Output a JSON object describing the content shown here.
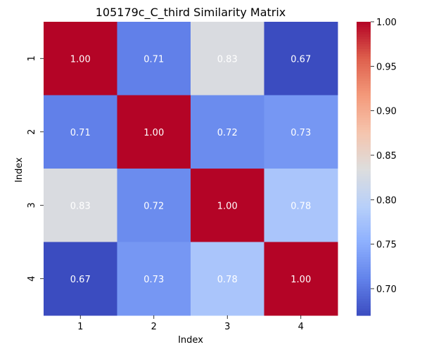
{
  "chart_data": {
    "type": "heatmap",
    "title": "105179c_C_third Similarity Matrix",
    "xlabel": "Index",
    "ylabel": "Index",
    "x_categories": [
      "1",
      "2",
      "3",
      "4"
    ],
    "y_categories": [
      "1",
      "2",
      "3",
      "4"
    ],
    "values": [
      [
        1.0,
        0.71,
        0.83,
        0.67
      ],
      [
        0.71,
        1.0,
        0.72,
        0.73
      ],
      [
        0.83,
        0.72,
        1.0,
        0.78
      ],
      [
        0.67,
        0.73,
        0.78,
        1.0
      ]
    ],
    "value_labels": [
      [
        "1.00",
        "0.71",
        "0.83",
        "0.67"
      ],
      [
        "0.71",
        "1.00",
        "0.72",
        "0.73"
      ],
      [
        "0.83",
        "0.72",
        "1.00",
        "0.78"
      ],
      [
        "0.67",
        "0.73",
        "0.78",
        "1.00"
      ]
    ],
    "colormap": "coolwarm",
    "color_range": [
      0.67,
      1.0
    ],
    "colorbar": {
      "ticks": [
        0.7,
        0.75,
        0.8,
        0.85,
        0.9,
        0.95,
        1.0
      ],
      "tick_labels": [
        "0.70",
        "0.75",
        "0.80",
        "0.85",
        "0.90",
        "0.95",
        "1.00"
      ],
      "position": "right"
    },
    "colors": {
      "low": "#3b4cc0",
      "mid": "#dddddd",
      "high": "#b40426",
      "annotation_text": "#ffffff"
    }
  }
}
